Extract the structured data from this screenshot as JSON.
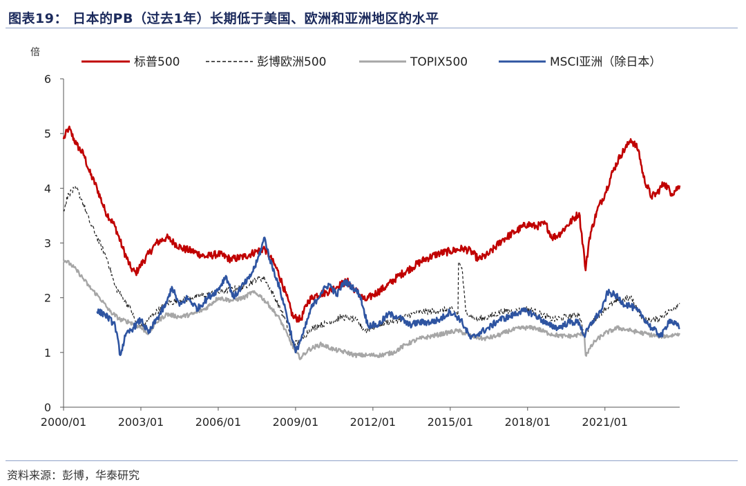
{
  "figure": {
    "title": "图表19： 日本的PB（过去1年）长期低于美国、欧洲和亚洲地区的水平",
    "source": "资料来源：彭博，华泰研究"
  },
  "chart_data": {
    "type": "line",
    "ylabel": "倍",
    "xlabel": "",
    "ylim": [
      0,
      6
    ],
    "xlim": [
      2000.0,
      2023.9
    ],
    "yticks": [
      0,
      1,
      2,
      3,
      4,
      5,
      6
    ],
    "xticks": [
      "2000/01",
      "2003/01",
      "2006/01",
      "2009/01",
      "2012/01",
      "2015/01",
      "2018/01",
      "2021/01"
    ],
    "grid": false,
    "legend_position": "top",
    "series": [
      {
        "name": "标普500",
        "color": "#c00000",
        "dash": "solid",
        "x": [
          2000.0,
          2000.2,
          2000.5,
          2000.8,
          2001.0,
          2001.3,
          2001.6,
          2002.0,
          2002.3,
          2002.6,
          2002.8,
          2003.0,
          2003.3,
          2003.6,
          2004.0,
          2004.3,
          2004.6,
          2005.0,
          2005.5,
          2006.0,
          2006.5,
          2007.0,
          2007.5,
          2007.8,
          2008.0,
          2008.3,
          2008.6,
          2008.9,
          2009.2,
          2009.5,
          2009.8,
          2010.2,
          2010.6,
          2011.0,
          2011.3,
          2011.7,
          2012.0,
          2012.5,
          2013.0,
          2013.5,
          2014.0,
          2014.5,
          2015.0,
          2015.5,
          2015.8,
          2016.1,
          2016.5,
          2017.0,
          2017.5,
          2018.0,
          2018.3,
          2018.7,
          2018.95,
          2019.2,
          2019.5,
          2020.0,
          2020.2,
          2020.25,
          2020.4,
          2020.7,
          2021.0,
          2021.3,
          2021.6,
          2021.9,
          2022.0,
          2022.3,
          2022.5,
          2022.8,
          2023.0,
          2023.3,
          2023.6,
          2023.9
        ],
        "y": [
          4.9,
          5.1,
          4.8,
          4.6,
          4.3,
          4.0,
          3.6,
          3.3,
          2.9,
          2.55,
          2.45,
          2.6,
          2.8,
          3.0,
          3.1,
          3.0,
          2.9,
          2.85,
          2.75,
          2.8,
          2.7,
          2.75,
          2.85,
          2.9,
          2.75,
          2.5,
          2.1,
          1.65,
          1.6,
          1.95,
          2.05,
          2.1,
          2.2,
          2.3,
          2.15,
          1.95,
          2.05,
          2.2,
          2.4,
          2.55,
          2.7,
          2.8,
          2.85,
          2.9,
          2.85,
          2.7,
          2.8,
          3.05,
          3.2,
          3.35,
          3.3,
          3.35,
          3.1,
          3.15,
          3.3,
          3.55,
          2.75,
          2.5,
          3.1,
          3.6,
          3.9,
          4.3,
          4.6,
          4.8,
          4.9,
          4.7,
          4.2,
          3.85,
          3.9,
          4.1,
          3.9,
          4.05
        ]
      },
      {
        "name": "彭博欧洲500",
        "color": "#1a1a1a",
        "dash": "dashed",
        "x": [
          2000.0,
          2000.2,
          2000.5,
          2000.7,
          2001.0,
          2001.3,
          2001.7,
          2002.0,
          2002.3,
          2002.6,
          2002.8,
          2003.1,
          2003.5,
          2004.0,
          2004.5,
          2005.0,
          2005.5,
          2006.0,
          2006.5,
          2007.0,
          2007.5,
          2007.8,
          2008.2,
          2008.6,
          2008.9,
          2009.2,
          2009.5,
          2009.9,
          2010.3,
          2010.8,
          2011.3,
          2011.7,
          2012.0,
          2012.5,
          2013.0,
          2013.5,
          2014.0,
          2014.5,
          2015.0,
          2015.3,
          2015.32,
          2015.45,
          2015.6,
          2016.0,
          2016.5,
          2017.0,
          2017.5,
          2018.0,
          2018.5,
          2019.0,
          2019.5,
          2020.0,
          2020.2,
          2020.5,
          2021.0,
          2021.5,
          2022.0,
          2022.5,
          2023.0,
          2023.5,
          2023.9
        ],
        "y": [
          3.6,
          3.9,
          4.0,
          3.8,
          3.4,
          3.1,
          2.7,
          2.2,
          2.0,
          1.8,
          1.55,
          1.5,
          1.7,
          1.9,
          1.95,
          2.0,
          2.05,
          2.1,
          2.15,
          2.2,
          2.35,
          2.35,
          2.0,
          1.6,
          1.15,
          1.2,
          1.4,
          1.5,
          1.55,
          1.65,
          1.6,
          1.4,
          1.45,
          1.55,
          1.6,
          1.7,
          1.75,
          1.75,
          1.8,
          1.7,
          2.65,
          2.55,
          1.75,
          1.6,
          1.65,
          1.75,
          1.75,
          1.8,
          1.7,
          1.6,
          1.65,
          1.7,
          1.3,
          1.55,
          1.8,
          1.95,
          2.0,
          1.6,
          1.6,
          1.75,
          1.9
        ]
      },
      {
        "name": "TOPIX500",
        "color": "#a6a6a6",
        "dash": "solid",
        "x": [
          2000.0,
          2000.3,
          2000.6,
          2001.0,
          2001.4,
          2001.8,
          2002.2,
          2002.6,
          2003.0,
          2003.3,
          2003.6,
          2004.0,
          2004.5,
          2005.0,
          2005.5,
          2006.0,
          2006.5,
          2007.0,
          2007.3,
          2007.6,
          2008.0,
          2008.4,
          2008.7,
          2009.0,
          2009.2,
          2009.5,
          2010.0,
          2010.5,
          2011.0,
          2011.3,
          2011.8,
          2012.3,
          2012.8,
          2013.3,
          2013.8,
          2014.3,
          2014.8,
          2015.3,
          2015.8,
          2016.3,
          2016.8,
          2017.3,
          2017.8,
          2018.3,
          2018.8,
          2019.3,
          2019.8,
          2020.2,
          2020.25,
          2020.6,
          2021.0,
          2021.5,
          2022.0,
          2022.5,
          2023.0,
          2023.5,
          2023.9
        ],
        "y": [
          2.7,
          2.6,
          2.45,
          2.2,
          2.0,
          1.75,
          1.6,
          1.55,
          1.45,
          1.35,
          1.55,
          1.7,
          1.65,
          1.7,
          1.8,
          2.0,
          1.95,
          2.0,
          2.1,
          2.05,
          1.85,
          1.6,
          1.3,
          1.0,
          0.9,
          1.05,
          1.15,
          1.05,
          1.0,
          0.95,
          0.95,
          0.95,
          1.0,
          1.15,
          1.25,
          1.3,
          1.35,
          1.4,
          1.3,
          1.25,
          1.3,
          1.4,
          1.45,
          1.45,
          1.35,
          1.3,
          1.3,
          1.35,
          0.95,
          1.2,
          1.35,
          1.45,
          1.4,
          1.35,
          1.3,
          1.3,
          1.35
        ]
      },
      {
        "name": "MSCI亚洲（除日本）",
        "color": "#2e54a1",
        "dash": "solid",
        "x": [
          2001.3,
          2001.6,
          2002.0,
          2002.2,
          2002.4,
          2002.7,
          2003.0,
          2003.3,
          2003.6,
          2004.0,
          2004.2,
          2004.5,
          2004.8,
          2005.2,
          2005.6,
          2006.0,
          2006.3,
          2006.6,
          2006.9,
          2007.2,
          2007.5,
          2007.8,
          2008.0,
          2008.3,
          2008.6,
          2008.9,
          2009.0,
          2009.3,
          2009.6,
          2010.0,
          2010.3,
          2010.6,
          2010.9,
          2011.2,
          2011.5,
          2011.8,
          2012.2,
          2012.6,
          2013.0,
          2013.4,
          2013.8,
          2014.2,
          2014.6,
          2015.0,
          2015.4,
          2015.8,
          2016.1,
          2016.5,
          2016.9,
          2017.3,
          2017.7,
          2018.0,
          2018.4,
          2018.8,
          2019.2,
          2019.6,
          2020.0,
          2020.2,
          2020.5,
          2020.9,
          2021.1,
          2021.4,
          2021.7,
          2022.0,
          2022.4,
          2022.8,
          2023.2,
          2023.5,
          2023.9
        ],
        "y": [
          1.75,
          1.7,
          1.5,
          0.95,
          1.3,
          1.45,
          1.6,
          1.35,
          1.6,
          1.9,
          2.2,
          1.85,
          2.0,
          1.8,
          2.0,
          2.15,
          2.4,
          2.0,
          2.2,
          2.35,
          2.65,
          3.1,
          2.7,
          2.3,
          1.8,
          1.2,
          1.0,
          1.35,
          1.8,
          2.1,
          2.25,
          2.05,
          2.3,
          2.2,
          2.05,
          1.5,
          1.5,
          1.7,
          1.65,
          1.5,
          1.55,
          1.55,
          1.6,
          1.75,
          1.6,
          1.25,
          1.35,
          1.45,
          1.6,
          1.65,
          1.75,
          1.75,
          1.65,
          1.5,
          1.45,
          1.55,
          1.55,
          1.3,
          1.55,
          1.8,
          2.1,
          2.05,
          1.9,
          1.85,
          1.7,
          1.45,
          1.3,
          1.6,
          1.45
        ]
      }
    ]
  }
}
